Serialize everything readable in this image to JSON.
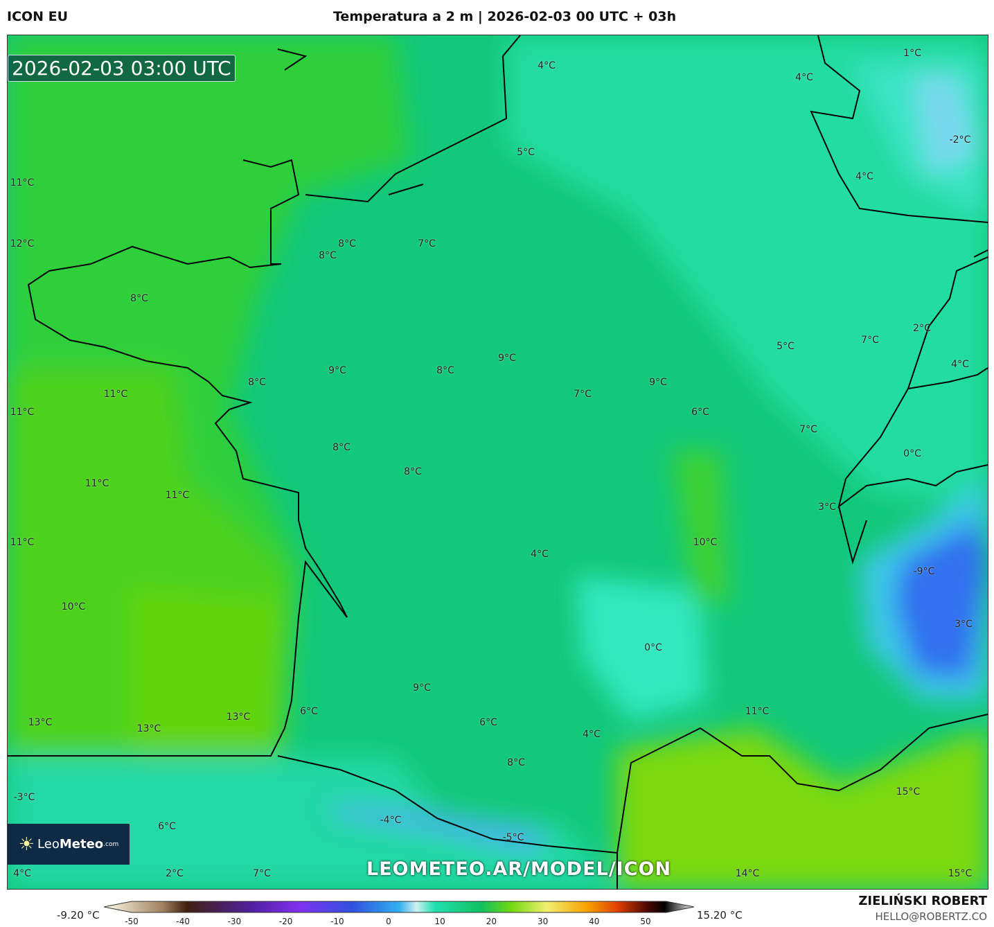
{
  "header": {
    "model": "ICON EU",
    "title": "Temperatura a 2 m | 2026-02-03 00 UTC + 03h"
  },
  "map": {
    "valid_time": "2026-02-03 03:00 UTC",
    "watermark": "LEOMETEO.AR/MODEL/ICON",
    "logo": {
      "name": "LeoMeteo",
      "bold": "Meteo",
      "light": "Leo",
      "suffix": ".com"
    },
    "labels": [
      "4°C",
      "4°C",
      "1°C",
      "-2°C",
      "5°C",
      "4°C",
      "11°C",
      "12°C",
      "8°C",
      "8°C",
      "7°C",
      "8°C",
      "2°C",
      "5°C",
      "7°C",
      "9°C",
      "4°C",
      "9°C",
      "8°C",
      "8°C",
      "9°C",
      "11°C",
      "7°C",
      "11°C",
      "6°C",
      "7°C",
      "8°C",
      "0°C",
      "8°C",
      "11°C",
      "11°C",
      "3°C",
      "11°C",
      "10°C",
      "4°C",
      "-9°C",
      "10°C",
      "3°C",
      "0°C",
      "9°C",
      "6°C",
      "11°C",
      "13°C",
      "13°C",
      "6°C",
      "13°C",
      "4°C",
      "8°C",
      "15°C",
      "-3°C",
      "-4°C",
      "6°C",
      "-5°C",
      "4°C",
      "2°C",
      "7°C",
      "14°C",
      "15°C"
    ]
  },
  "colorbar": {
    "min_label": "-9.20 °C",
    "max_label": "15.20 °C",
    "ticks": [
      "-50",
      "-40",
      "-30",
      "-20",
      "-10",
      "0",
      "10",
      "20",
      "30",
      "40",
      "50"
    ],
    "unit": "°C",
    "range": [
      -50,
      55
    ]
  },
  "footer": {
    "author": "ZIELIŃSKI ROBERT",
    "email": "HELLO@ROBERTZ.CO"
  }
}
